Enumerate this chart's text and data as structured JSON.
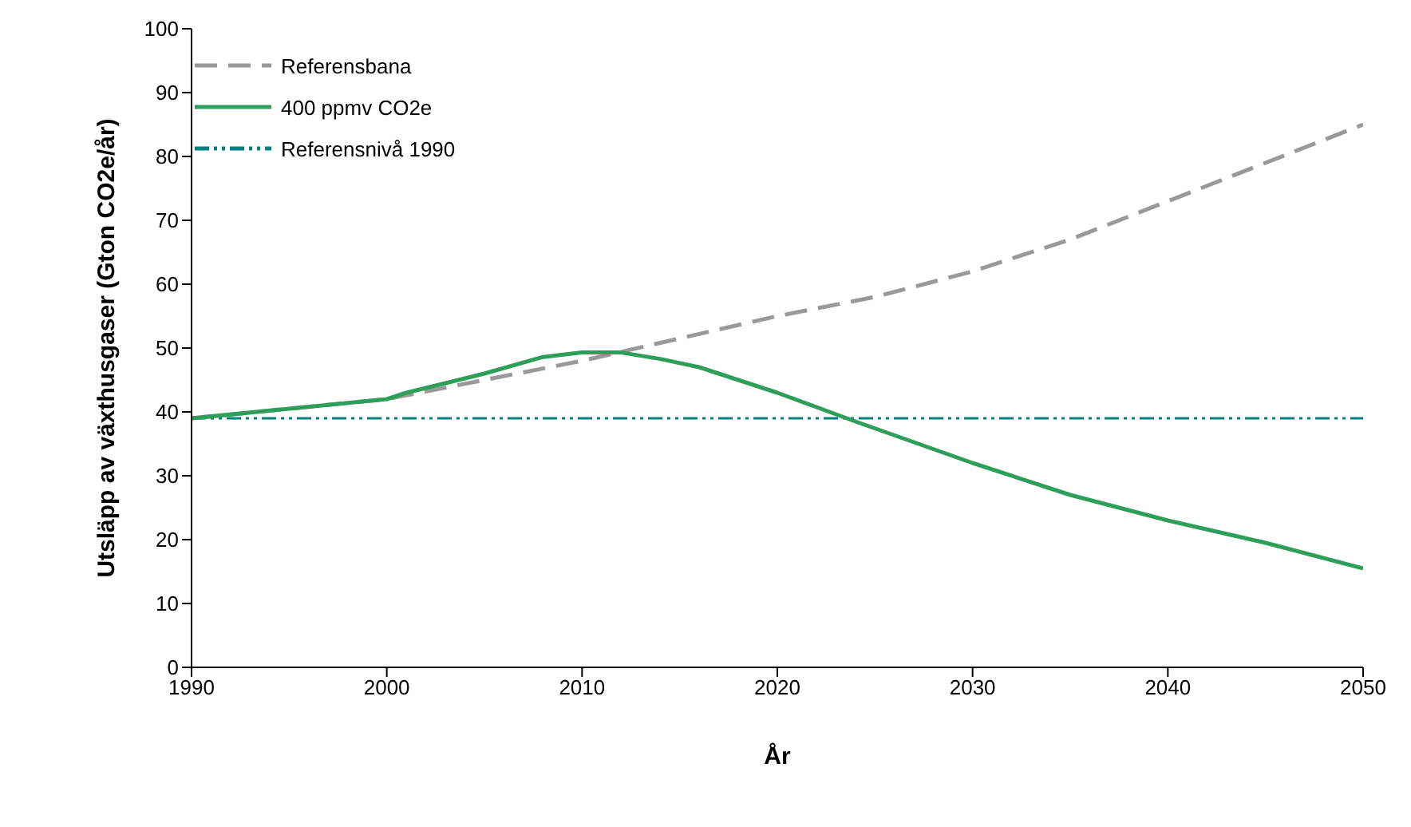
{
  "chart_data": {
    "type": "line",
    "xlabel": "År",
    "ylabel": "Utsläpp av växthusgaser (Gton CO2e/år)",
    "xlim": [
      1990,
      2050
    ],
    "xticks": [
      1990,
      2000,
      2010,
      2020,
      2030,
      2040,
      2050
    ],
    "ylim": [
      0,
      100
    ],
    "yticks": [
      0,
      10,
      20,
      30,
      40,
      50,
      60,
      70,
      80,
      90,
      100
    ],
    "legend": "top left",
    "marker": "none",
    "series": [
      {
        "name": "Referensbana",
        "color": "#999999",
        "line_style": "dashed",
        "x": [
          1990,
          1995,
          2000,
          2005,
          2010,
          2015,
          2020,
          2025,
          2030,
          2035,
          2040,
          2045,
          2050
        ],
        "values": [
          39,
          40.5,
          42,
          45,
          48,
          51.5,
          55,
          58,
          62,
          67,
          73,
          79,
          85
        ]
      },
      {
        "name": "400 ppmv CO2e",
        "color": "#2e9e5b",
        "line_style": "solid",
        "x": [
          1990,
          1995,
          2000,
          2001,
          2005,
          2008,
          2010,
          2012,
          2014,
          2016,
          2020,
          2024,
          2030,
          2035,
          2040,
          2045,
          2050
        ],
        "values": [
          39,
          40.5,
          42,
          43,
          46,
          48.6,
          49.3,
          49.3,
          48.3,
          47,
          43,
          38.5,
          32,
          27,
          23,
          19.5,
          15.5
        ]
      }
    ],
    "ref_lines": [
      {
        "axis": "y",
        "value": 39,
        "label": "Referensnivå 1990",
        "color": "#008080",
        "line_style": "dashed"
      }
    ]
  }
}
